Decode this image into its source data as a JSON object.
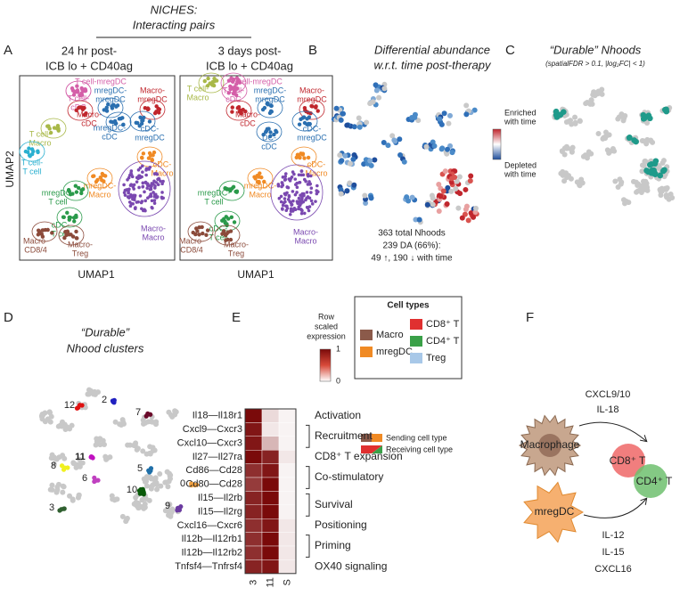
{
  "header": {
    "title": "NICHES:",
    "subtitle": "Interacting pairs"
  },
  "panels": {
    "a": {
      "label": "A",
      "left_title": [
        "24 hr post-",
        "ICB lo + CD40ag"
      ],
      "right_title": [
        "3 days post-",
        "ICB lo + CD40ag"
      ],
      "y_axis": "UMAP2",
      "x_axis": "UMAP1",
      "clusters": [
        {
          "lines": [
            "T cell-mregDC"
          ],
          "color": "#d45fa8"
        },
        {
          "lines": [
            "T cell-",
            "Macro"
          ],
          "color": "#a8b848"
        },
        {
          "lines": [
            "T cell-",
            "cDC"
          ],
          "color": "#d45fa8"
        },
        {
          "lines": [
            "mregDC-",
            "mregDC"
          ],
          "color": "#2a6fb0"
        },
        {
          "lines": [
            "Macro-",
            "mregDC"
          ],
          "color": "#c0262d"
        },
        {
          "lines": [
            "Macro-",
            "cDC"
          ],
          "color": "#c0262d"
        },
        {
          "lines": [
            "T cell-",
            "T cell"
          ],
          "color": "#2ab0d0"
        },
        {
          "lines": [
            "mregDC-",
            "cDC"
          ],
          "color": "#2a6fb0"
        },
        {
          "lines": [
            "cDC-",
            "mregDC"
          ],
          "color": "#2a6fb0"
        },
        {
          "lines": [
            "DC-",
            "cDC"
          ],
          "color": "#2a6fb0"
        },
        {
          "lines": [
            "cDC-",
            "Macro"
          ],
          "color": "#f08a24"
        },
        {
          "lines": [
            "mregDC-",
            "Macro"
          ],
          "color": "#f08a24"
        },
        {
          "lines": [
            "mregDC-",
            "T cell"
          ],
          "color": "#2a9a4a"
        },
        {
          "lines": [
            "cDC-",
            "T cell"
          ],
          "color": "#2a9a4a"
        },
        {
          "lines": [
            "Macro-",
            "CD8/4"
          ],
          "color": "#8b4a3a"
        },
        {
          "lines": [
            "Macro-",
            "Treg"
          ],
          "color": "#8b4a3a"
        },
        {
          "lines": [
            "Macro-",
            "Macro"
          ],
          "color": "#7a48b0"
        }
      ]
    },
    "b": {
      "label": "B",
      "title": [
        "Differential abundance",
        "w.r.t. time post-therapy"
      ],
      "legend": {
        "high": [
          "Enriched",
          "with time"
        ],
        "low": [
          "Depleted",
          "with time"
        ]
      },
      "summary": [
        "363 total Nhoods",
        "239 DA (66%):",
        "49 ↑, 190 ↓ with time"
      ]
    },
    "c": {
      "label": "C",
      "title": "“Durable” Nhoods",
      "subtitle": "(spatialFDR > 0.1, |log₂FC| < 1)"
    },
    "d": {
      "label": "D",
      "title": [
        "“Durable”",
        "Nhood clusters"
      ],
      "clusters": [
        "12",
        "2",
        "7",
        "5",
        "11",
        "8",
        "6",
        "3",
        "10",
        "0",
        "9"
      ]
    },
    "e": {
      "label": "E",
      "scale_title": [
        "Row",
        "scaled",
        "expression"
      ],
      "scale_ticks": [
        1,
        0
      ],
      "cell_types": {
        "title": "Cell types",
        "items": [
          {
            "name": "Macro",
            "color": "#8b5a4a"
          },
          {
            "name": "mregDC",
            "color": "#f08a24"
          },
          {
            "name": "CD8⁺ T",
            "color": "#e03030"
          },
          {
            "name": "CD4⁺ T",
            "color": "#3aa048"
          },
          {
            "name": "Treg",
            "color": "#a8c8e8"
          }
        ]
      },
      "sending": "Sending cell type",
      "receiving": "Receiving cell type",
      "heatmap": {
        "columns": [
          "3",
          "11",
          "S"
        ],
        "rows": [
          "Il18—Il18r1",
          "Cxcl9—Cxcr3",
          "Cxcl10—Cxcr3",
          "Il27—Il27ra",
          "Cd86—Cd28",
          "Cd80—Cd28",
          "Il15—Il2rb",
          "Il15—Il2rg",
          "Cxcl16—Cxcr6",
          "Il12b—Il12rb1",
          "Il12b—Il12rb2",
          "Tnfsf4—Tnfrsf4"
        ],
        "values": [
          [
            1,
            0.15,
            0.05
          ],
          [
            0.95,
            0.1,
            0.05
          ],
          [
            0.95,
            0.3,
            0.05
          ],
          [
            1,
            0.9,
            0.1
          ],
          [
            0.85,
            0.95,
            0.05
          ],
          [
            0.8,
            1,
            0.05
          ],
          [
            0.9,
            1,
            0.05
          ],
          [
            0.9,
            1,
            0.05
          ],
          [
            0.85,
            0.95,
            0.1
          ],
          [
            0.85,
            1,
            0.1
          ],
          [
            0.85,
            1,
            0.1
          ],
          [
            0.9,
            0.95,
            0.1
          ]
        ]
      },
      "categories": [
        "Activation",
        "Recruitment",
        "CD8⁺ T expansion",
        "Co-stimulatory",
        "Survival",
        "Positioning",
        "Priming",
        "OX40 signaling"
      ]
    },
    "f": {
      "label": "F",
      "top_signals": [
        "CXCL9/10",
        "IL-18"
      ],
      "bottom_signals": [
        "IL-12",
        "IL-15",
        "CXCL16"
      ],
      "sender_top": "Macrophage",
      "sender_bottom": "mregDC",
      "receiver_1": "CD8⁺ T",
      "receiver_2": "CD4⁺ T"
    }
  }
}
